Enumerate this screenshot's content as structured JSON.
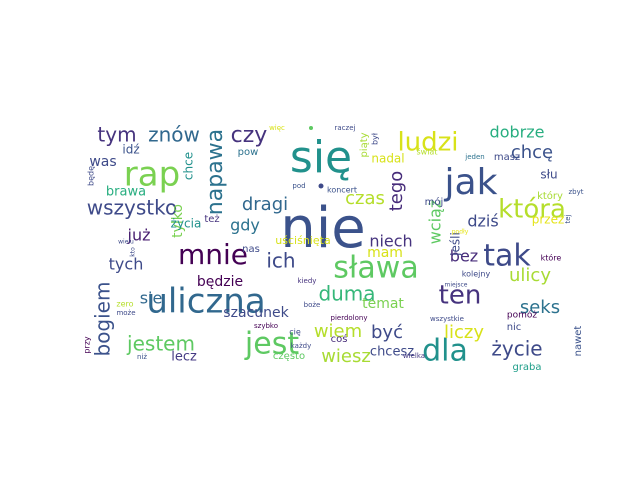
{
  "words": [
    {
      "text": "nie",
      "color": "#3b528b"
    },
    {
      "text": "się",
      "color": "#21918c"
    },
    {
      "text": "uliczna",
      "color": "#31688e"
    },
    {
      "text": "sława",
      "color": "#5ec962"
    },
    {
      "text": "jak",
      "color": "#3b528b"
    },
    {
      "text": "jest",
      "color": "#5ec962"
    },
    {
      "text": "mnie",
      "color": "#440154"
    },
    {
      "text": "rap",
      "color": "#7ad151"
    },
    {
      "text": "tak",
      "color": "#3e4a89"
    },
    {
      "text": "dla",
      "color": "#21918c"
    },
    {
      "text": "która",
      "color": "#b5de2b"
    },
    {
      "text": "ludzi",
      "color": "#d8e219"
    },
    {
      "text": "ten",
      "color": "#46337e"
    },
    {
      "text": "napawa",
      "color": "#2c728e"
    },
    {
      "text": "duma",
      "color": "#35b779"
    },
    {
      "text": "czy",
      "color": "#46337e"
    },
    {
      "text": "wszystko",
      "color": "#3e4a89"
    },
    {
      "text": "tym",
      "color": "#46337e"
    },
    {
      "text": "znów",
      "color": "#31688e"
    },
    {
      "text": "bogiem",
      "color": "#3b528b"
    },
    {
      "text": "jestem",
      "color": "#5ec962"
    },
    {
      "text": "życie",
      "color": "#3e4a89"
    },
    {
      "text": "ich",
      "color": "#3e4a89"
    },
    {
      "text": "tego",
      "color": "#472c7a"
    },
    {
      "text": "wiem",
      "color": "#b5de2b"
    },
    {
      "text": "być",
      "color": "#3e4a89"
    },
    {
      "text": "wiesz",
      "color": "#a8db34"
    },
    {
      "text": "czas",
      "color": "#b5de2b"
    },
    {
      "text": "dragi",
      "color": "#31688e"
    },
    {
      "text": "wciąż",
      "color": "#5ec962"
    },
    {
      "text": "liczy",
      "color": "#d8e219"
    },
    {
      "text": "seks",
      "color": "#2c728e"
    },
    {
      "text": "ulicy",
      "color": "#a8db34"
    },
    {
      "text": "chcę",
      "color": "#3b528b"
    },
    {
      "text": "dobrze",
      "color": "#28ae80"
    },
    {
      "text": "bez",
      "color": "#472c7a"
    },
    {
      "text": "niech",
      "color": "#46337e"
    },
    {
      "text": "tych",
      "color": "#3e4a89"
    },
    {
      "text": "już",
      "color": "#481f70"
    },
    {
      "text": "mam",
      "color": "#d8e219"
    },
    {
      "text": "gdy",
      "color": "#2c728e"
    },
    {
      "text": "sie",
      "color": "#31688e"
    },
    {
      "text": "dziś",
      "color": "#3e4a89"
    },
    {
      "text": "będzie",
      "color": "#440154"
    },
    {
      "text": "szacunek",
      "color": "#3e4a89"
    },
    {
      "text": "temat",
      "color": "#7ad151"
    },
    {
      "text": "was",
      "color": "#3e4a89"
    },
    {
      "text": "brawa",
      "color": "#28ae80"
    },
    {
      "text": "tylko",
      "color": "#7ad151"
    },
    {
      "text": "chce",
      "color": "#21918c"
    },
    {
      "text": "lecz",
      "color": "#443983"
    },
    {
      "text": "chcesz",
      "color": "#3e4a89"
    },
    {
      "text": "nadal",
      "color": "#d8e219"
    },
    {
      "text": "jeśli",
      "color": "#3e4a89"
    },
    {
      "text": "przez",
      "color": "#e5e419"
    },
    {
      "text": "życia",
      "color": "#21918c"
    },
    {
      "text": "idź",
      "color": "#3b528b"
    },
    {
      "text": "pow",
      "color": "#2c728e"
    },
    {
      "text": "słu",
      "color": "#3e4a89"
    },
    {
      "text": "masz",
      "color": "#3e4a89"
    },
    {
      "text": "który",
      "color": "#a8db34"
    },
    {
      "text": "graba",
      "color": "#1f9e89"
    },
    {
      "text": "nawet",
      "color": "#3b528b"
    },
    {
      "text": "nic",
      "color": "#3e4a89"
    },
    {
      "text": "pomóż",
      "color": "#440154"
    },
    {
      "text": "uściśnięta",
      "color": "#d8e219"
    },
    {
      "text": "często",
      "color": "#5ec962"
    },
    {
      "text": "coś",
      "color": "#472c7a"
    },
    {
      "text": "mój",
      "color": "#3e4a89"
    },
    {
      "text": "nas",
      "color": "#3e4a89"
    },
    {
      "text": "też",
      "color": "#46337e"
    },
    {
      "text": "kolejny",
      "color": "#3e4a89"
    },
    {
      "text": "które",
      "color": "#440154"
    },
    {
      "text": "świat",
      "color": "#b5de2b"
    },
    {
      "text": "jeden",
      "color": "#2c728e"
    },
    {
      "text": "zbyt",
      "color": "#3b528b"
    },
    {
      "text": "tej",
      "color": "#3b528b"
    },
    {
      "text": "piąty",
      "color": "#a8db34"
    },
    {
      "text": "był",
      "color": "#3e4a89"
    },
    {
      "text": "każdy",
      "color": "#3e4a89"
    },
    {
      "text": "koncert",
      "color": "#3b528b"
    },
    {
      "text": "pod",
      "color": "#3b528b"
    },
    {
      "text": "więc",
      "color": "#d8e219"
    },
    {
      "text": "raczej",
      "color": "#3e4a89"
    },
    {
      "text": "szybko",
      "color": "#440154"
    },
    {
      "text": "kiedy",
      "color": "#46337e"
    },
    {
      "text": "boże",
      "color": "#3e4a89"
    },
    {
      "text": "pierdolony",
      "color": "#440154"
    },
    {
      "text": "miejsce",
      "color": "#3e4a89"
    },
    {
      "text": "wszystkie",
      "color": "#3e4a89"
    },
    {
      "text": "wielka",
      "color": "#443983"
    },
    {
      "text": "będę",
      "color": "#3e4a89"
    },
    {
      "text": "przy",
      "color": "#440154"
    },
    {
      "text": "może",
      "color": "#3e4a89"
    },
    {
      "text": "niż",
      "color": "#3b528b"
    },
    {
      "text": "zero",
      "color": "#b5de2b"
    },
    {
      "text": "kto",
      "color": "#3e4a89"
    },
    {
      "text": "wielu",
      "color": "#3e4a89"
    },
    {
      "text": "cię",
      "color": "#3e4a89"
    },
    {
      "text": "podły",
      "color": "#e5e419"
    }
  ]
}
